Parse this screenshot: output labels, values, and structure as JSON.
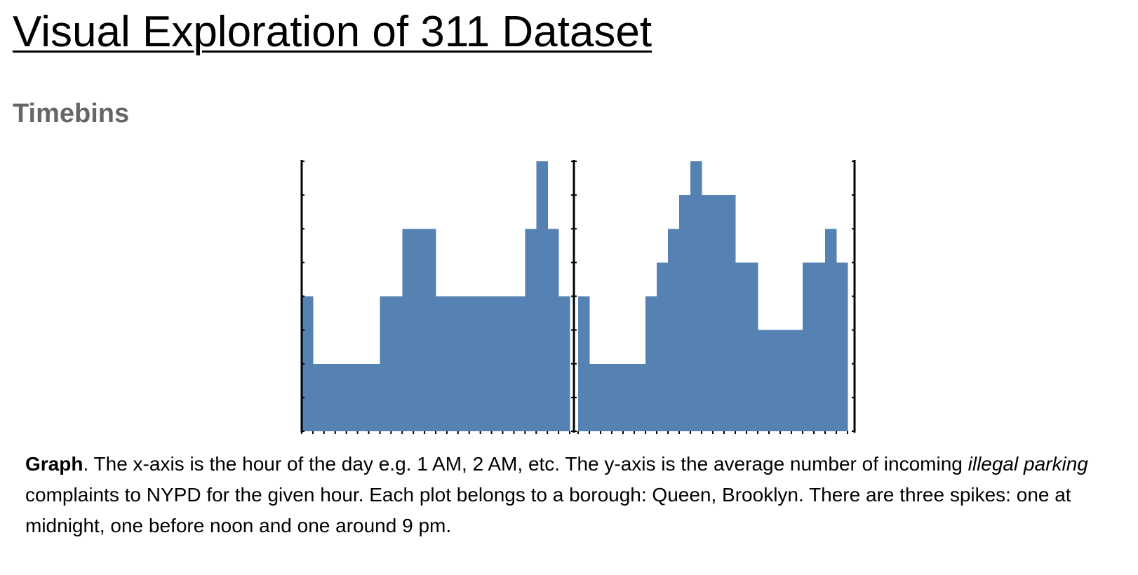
{
  "page": {
    "title": "Visual Exploration of 311 Dataset",
    "section_heading": "Timebins"
  },
  "caption": {
    "bold_lead": "Graph",
    "part1": ". The x-axis is the hour of the day e.g. 1 AM, 2 AM, etc. The y-axis is the average number of incoming ",
    "italic": "illegal parking",
    "part2": " complaints to NYPD for the given hour. Each plot belongs to a borough: Queen, Brooklyn. There are three spikes: one at midnight, one before noon and one around 9 pm."
  },
  "colors": {
    "bar": "#5582B3",
    "axis": "#000000",
    "heading": "#666666"
  },
  "chart_data": [
    {
      "type": "bar",
      "bins": 24,
      "values": [
        4,
        2,
        2,
        2,
        2,
        2,
        2,
        4,
        4,
        6,
        6,
        6,
        4,
        4,
        4,
        4,
        4,
        4,
        4,
        4,
        6,
        8,
        6,
        4
      ],
      "ylim": [
        0,
        8
      ],
      "grid": false
    },
    {
      "type": "bar",
      "bins": 24,
      "values": [
        4,
        2,
        2,
        2,
        2,
        2,
        4,
        5,
        6,
        7,
        8,
        7,
        7,
        7,
        5,
        5,
        3,
        3,
        3,
        3,
        5,
        5,
        6,
        5
      ],
      "ylim": [
        0,
        8
      ],
      "grid": false
    }
  ]
}
